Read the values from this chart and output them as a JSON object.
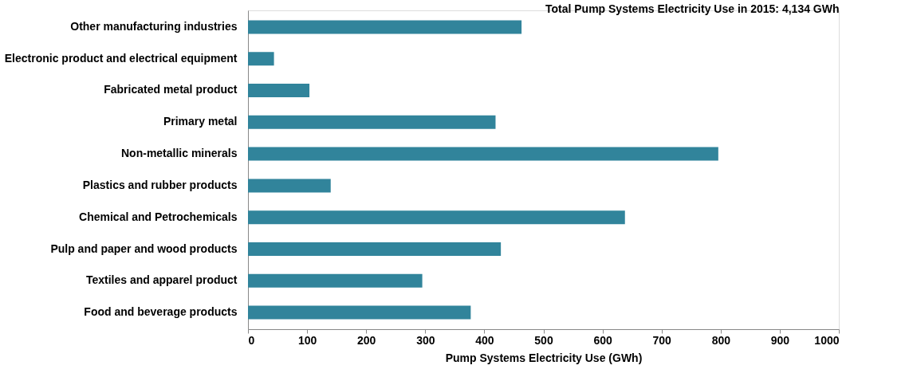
{
  "chart_data": {
    "type": "bar",
    "orientation": "horizontal",
    "title": "Total Pump Systems Electricity Use in 2015: 4,134 GWh",
    "xlabel": "Pump Systems Electricity Use (GWh)",
    "categories": [
      "Other manufacturing industries",
      "Electronic product and electrical equipment",
      "Fabricated metal product",
      "Primary metal",
      "Non-metallic minerals",
      "Plastics and rubber products",
      "Chemical and Petrochemicals",
      "Pulp and paper and wood products",
      "Textiles and apparel product",
      "Food and beverage products"
    ],
    "values": [
      463,
      44,
      104,
      419,
      796,
      140,
      638,
      428,
      295,
      377
    ],
    "color": "#31849b",
    "xlim": [
      0,
      1000
    ],
    "xticks": [
      0,
      100,
      200,
      300,
      400,
      500,
      600,
      700,
      800,
      900,
      1000
    ],
    "grid": false
  }
}
